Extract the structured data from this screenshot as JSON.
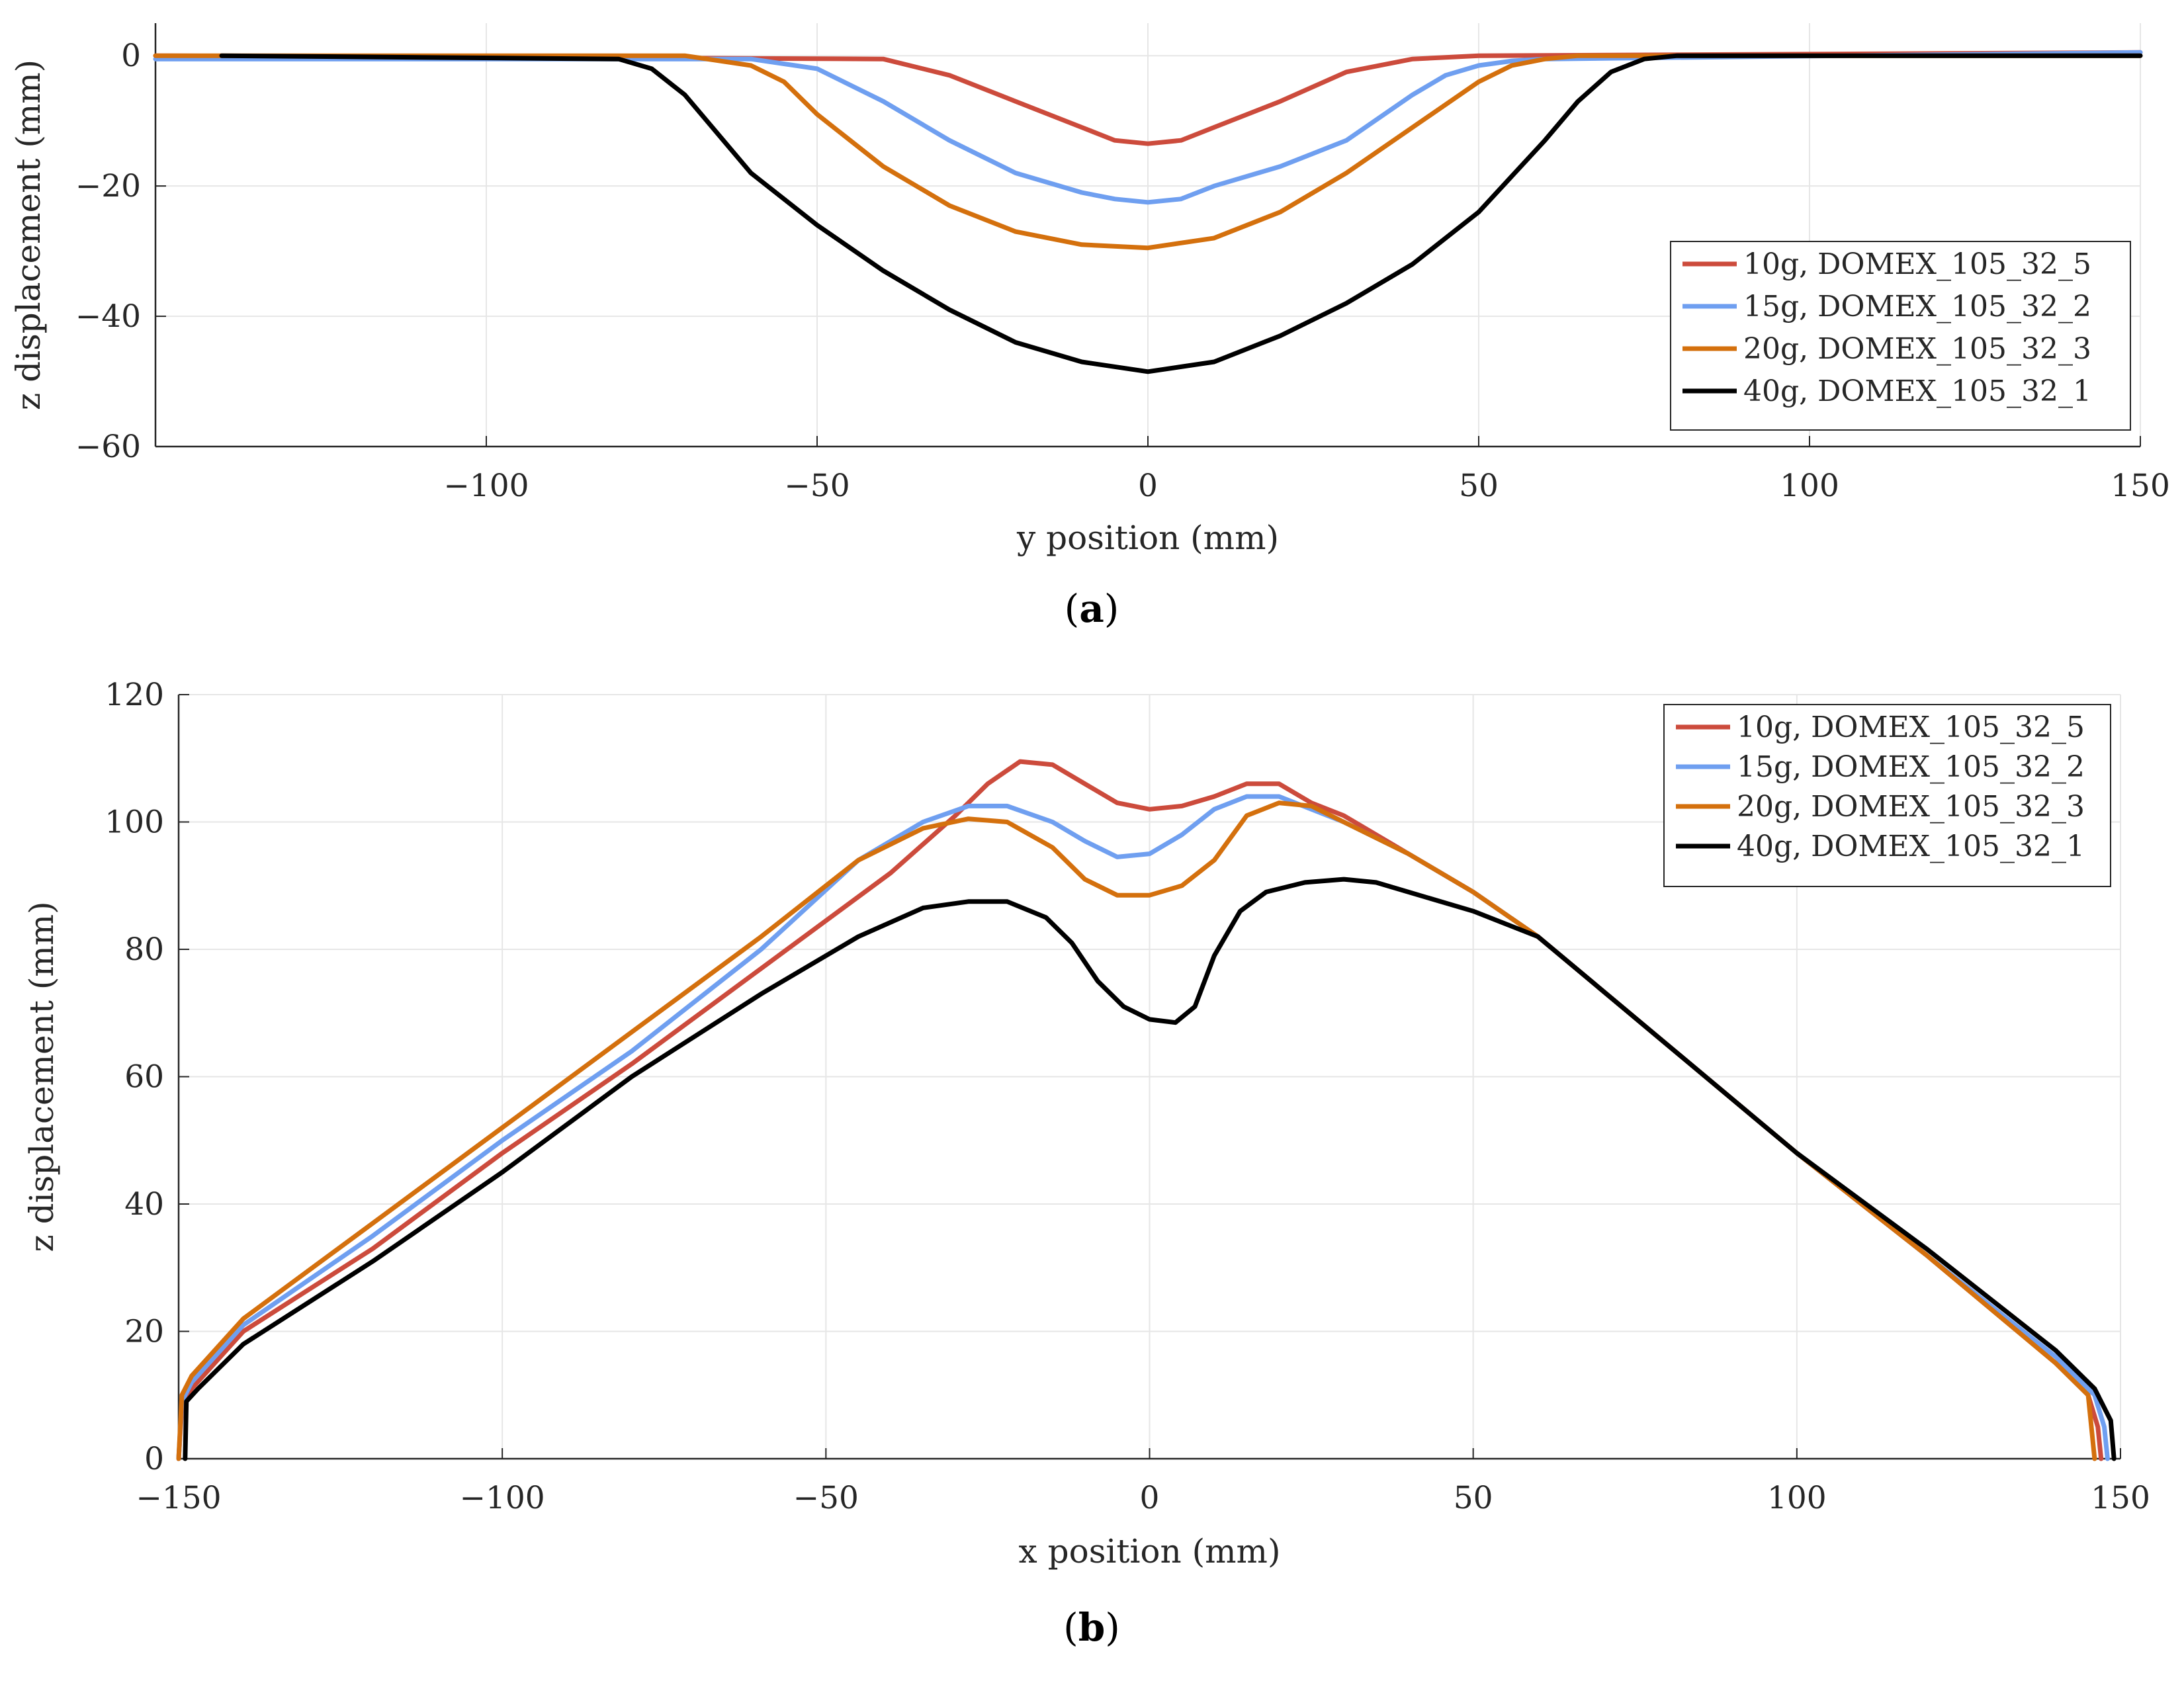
{
  "figure": {
    "panels": [
      {
        "caption": {
          "open": "(",
          "letter": "a",
          "close": ")"
        }
      },
      {
        "caption": {
          "open": "(",
          "letter": "b",
          "close": ")"
        }
      }
    ]
  },
  "chart_data": [
    {
      "type": "line",
      "panel": "a",
      "title": "",
      "xlabel": "y position (mm)",
      "ylabel": "z displacement (mm)",
      "xlim": [
        -150,
        150
      ],
      "ylim": [
        -60,
        5
      ],
      "xticks": [
        -100,
        -50,
        0,
        50,
        100,
        150
      ],
      "xtick_labels": [
        "−100",
        "−50",
        "0",
        "50",
        "100",
        "150"
      ],
      "yticks": [
        0,
        -20,
        -40,
        -60
      ],
      "ytick_labels": [
        "0",
        "−20",
        "−40",
        "−60"
      ],
      "grid": true,
      "legend_position": "right",
      "series": [
        {
          "name": "10g, DOMEX_105_32_5",
          "legend_main": "10g, DOMEX",
          "legend_nums": [
            "105",
            "32",
            "5"
          ],
          "color": "#cc4b3c",
          "x": [
            -150,
            -40,
            -30,
            -20,
            -10,
            -5,
            0,
            5,
            10,
            20,
            30,
            40,
            50,
            150
          ],
          "y": [
            0,
            -0.5,
            -3,
            -7,
            -11,
            -13,
            -13.5,
            -13,
            -11,
            -7,
            -2.5,
            -0.5,
            0,
            0.5
          ]
        },
        {
          "name": "15g, DOMEX_105_32_2",
          "legend_main": "15g, DOMEX",
          "legend_nums": [
            "105",
            "32",
            "2"
          ],
          "color": "#6f9ff0",
          "x": [
            -150,
            -60,
            -50,
            -40,
            -30,
            -20,
            -10,
            -5,
            0,
            5,
            10,
            20,
            30,
            40,
            45,
            50,
            55,
            60,
            150
          ],
          "y": [
            -0.5,
            -0.5,
            -2,
            -7,
            -13,
            -18,
            -21,
            -22,
            -22.5,
            -22,
            -20,
            -17,
            -13,
            -6,
            -3,
            -1.5,
            -0.8,
            -0.5,
            0.5
          ]
        },
        {
          "name": "20g, DOMEX_105_32_3",
          "legend_main": "20g, DOMEX",
          "legend_nums": [
            "105",
            "32",
            "3"
          ],
          "color": "#d4700d",
          "x": [
            -150,
            -70,
            -60,
            -55,
            -50,
            -40,
            -30,
            -20,
            -10,
            0,
            10,
            20,
            30,
            40,
            50,
            55,
            60,
            65,
            70,
            150
          ],
          "y": [
            0,
            0,
            -1.5,
            -4,
            -9,
            -17,
            -23,
            -27,
            -29,
            -29.5,
            -28,
            -24,
            -18,
            -11,
            -4,
            -1.5,
            -0.5,
            0,
            0,
            0
          ]
        },
        {
          "name": "40g, DOMEX_105_32_1",
          "legend_main": "40g, DOMEX",
          "legend_nums": [
            "105",
            "32",
            "1"
          ],
          "color": "#000000",
          "x": [
            -140,
            -80,
            -75,
            -70,
            -65,
            -60,
            -50,
            -40,
            -30,
            -20,
            -10,
            0,
            10,
            20,
            30,
            40,
            50,
            60,
            65,
            70,
            75,
            80,
            150
          ],
          "y": [
            0,
            -0.5,
            -2,
            -6,
            -12,
            -18,
            -26,
            -33,
            -39,
            -44,
            -47,
            -48.5,
            -47,
            -43,
            -38,
            -32,
            -24,
            -13,
            -7,
            -2.5,
            -0.5,
            0,
            0
          ]
        }
      ]
    },
    {
      "type": "line",
      "panel": "b",
      "title": "",
      "xlabel": "x position (mm)",
      "ylabel": "z displacement (mm)",
      "xlim": [
        -150,
        150
      ],
      "ylim": [
        0,
        120
      ],
      "xticks": [
        -150,
        -100,
        -50,
        0,
        50,
        100,
        150
      ],
      "xtick_labels": [
        "−150",
        "−100",
        "−50",
        "0",
        "50",
        "100",
        "150"
      ],
      "yticks": [
        0,
        20,
        40,
        60,
        80,
        100,
        120
      ],
      "ytick_labels": [
        "0",
        "20",
        "40",
        "60",
        "80",
        "100",
        "120"
      ],
      "grid": true,
      "legend_position": "top-right",
      "series": [
        {
          "name": "10g, DOMEX_105_32_5",
          "legend_main": "10g, DOMEX",
          "legend_nums": [
            "105",
            "32",
            "5"
          ],
          "color": "#cc4b3c",
          "x": [
            -150,
            -149.5,
            -148,
            -140,
            -120,
            -100,
            -80,
            -60,
            -40,
            -30,
            -25,
            -20,
            -15,
            -10,
            -5,
            0,
            5,
            10,
            15,
            20,
            25,
            30,
            40,
            50,
            60,
            80,
            100,
            120,
            140,
            145,
            146.5,
            147
          ],
          "y": [
            0,
            8,
            11,
            20,
            33,
            48,
            62,
            77,
            92,
            101,
            106,
            109.5,
            109,
            106,
            103,
            102,
            102.5,
            104,
            106,
            106,
            103,
            101,
            95,
            89,
            82,
            65,
            48,
            32,
            15,
            10,
            5,
            0
          ]
        },
        {
          "name": "15g, DOMEX_105_32_2",
          "legend_main": "15g, DOMEX",
          "legend_nums": [
            "105",
            "32",
            "2"
          ],
          "color": "#6f9ff0",
          "x": [
            -150,
            -149.5,
            -148,
            -140,
            -120,
            -100,
            -80,
            -60,
            -45,
            -35,
            -28,
            -22,
            -15,
            -10,
            -5,
            0,
            5,
            10,
            15,
            20,
            25,
            30,
            40,
            50,
            60,
            80,
            100,
            120,
            140,
            146,
            147.5,
            148
          ],
          "y": [
            0,
            9,
            12,
            21,
            35,
            50,
            64,
            80,
            94,
            100,
            102.5,
            102.5,
            100,
            97,
            94.5,
            95,
            98,
            102,
            104,
            104,
            102,
            100,
            95,
            89,
            82,
            65,
            48,
            32,
            16,
            10,
            5,
            0
          ]
        },
        {
          "name": "20g, DOMEX_105_32_3",
          "legend_main": "20g, DOMEX",
          "legend_nums": [
            "105",
            "32",
            "3"
          ],
          "color": "#d4700d",
          "x": [
            -150,
            -149.5,
            -148,
            -140,
            -120,
            -100,
            -80,
            -60,
            -45,
            -35,
            -28,
            -22,
            -15,
            -10,
            -5,
            0,
            5,
            10,
            15,
            20,
            25,
            30,
            40,
            50,
            60,
            80,
            100,
            120,
            140,
            145,
            146
          ],
          "y": [
            0,
            10,
            13,
            22,
            37,
            52,
            67,
            82,
            94,
            99,
            100.5,
            100,
            96,
            91,
            88.5,
            88.5,
            90,
            94,
            101,
            103,
            102.5,
            100,
            95,
            89,
            82,
            65,
            48,
            32,
            15,
            10,
            0
          ]
        },
        {
          "name": "40g, DOMEX_105_32_1",
          "legend_main": "40g, DOMEX",
          "legend_nums": [
            "105",
            "32",
            "1"
          ],
          "color": "#000000",
          "x": [
            -149,
            -148.8,
            -147,
            -140,
            -120,
            -100,
            -80,
            -60,
            -45,
            -35,
            -28,
            -22,
            -16,
            -12,
            -8,
            -4,
            0,
            4,
            7,
            10,
            14,
            18,
            24,
            30,
            35,
            40,
            50,
            60,
            80,
            100,
            120,
            140,
            146,
            148.5,
            149
          ],
          "y": [
            0,
            9,
            11,
            18,
            31,
            45,
            60,
            73,
            82,
            86.5,
            87.5,
            87.5,
            85,
            81,
            75,
            71,
            69,
            68.5,
            71,
            79,
            86,
            89,
            90.5,
            91,
            90.5,
            89,
            86,
            82,
            65,
            48,
            33,
            17,
            11,
            6,
            0
          ]
        }
      ]
    }
  ]
}
